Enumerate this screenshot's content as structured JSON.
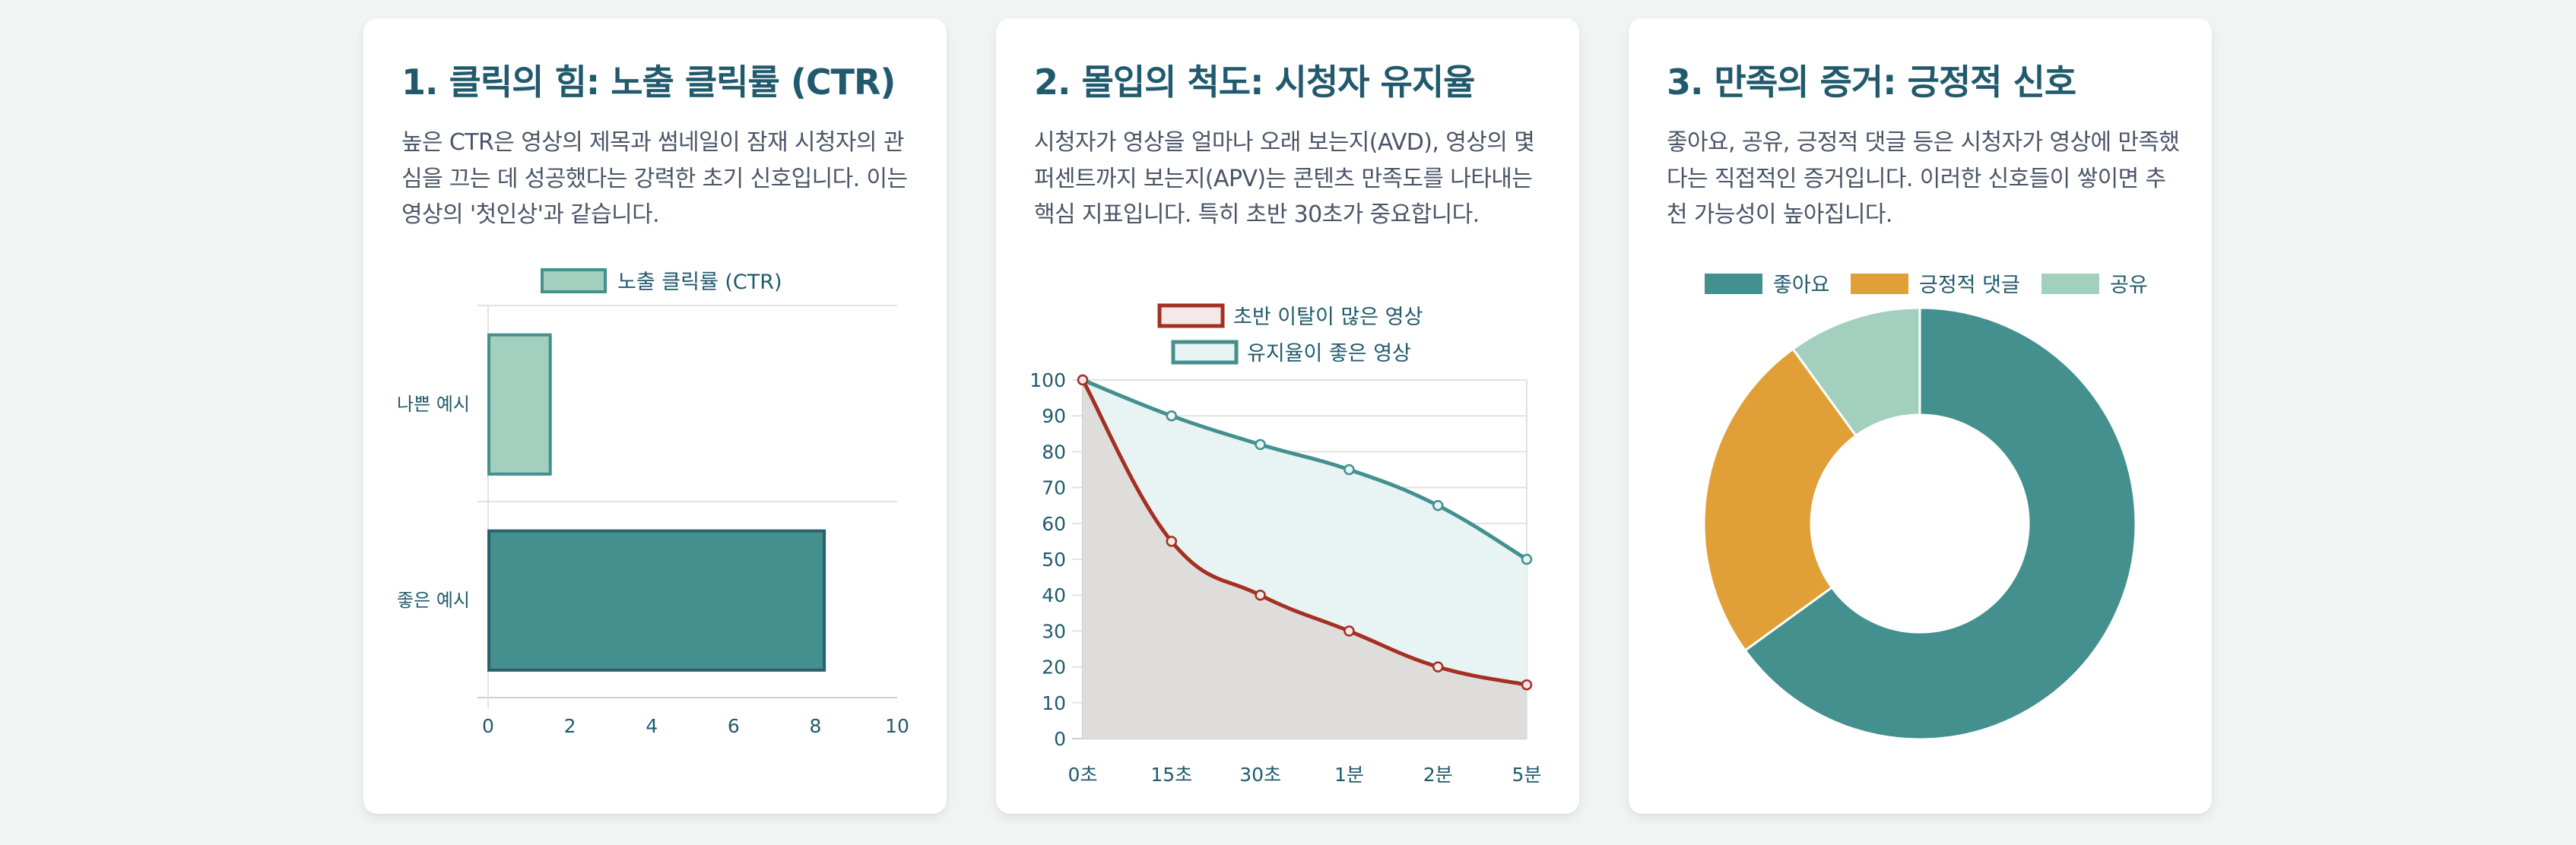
{
  "cards": [
    {
      "title": "1. 클릭의 힘: 노출 클릭률 (CTR)",
      "description": "높은 CTR은 영상의 제목과 썸네일이 잠재 시청자의 관심을 끄는 데 성공했다는 강력한 초기 신호입니다. 이는 영상의 '첫인상'과 같습니다."
    },
    {
      "title": "2. 몰입의 척도: 시청자 유지율",
      "description": "시청자가 영상을 얼마나 오래 보는지(AVD), 영상의 몇 퍼센트까지 보는지(APV)는 콘텐츠 만족도를 나타내는 핵심 지표입니다. 특히 초반 30초가 중요합니다."
    },
    {
      "title": "3. 만족의 증거: 긍정적 신호",
      "description": "좋아요, 공유, 긍정적 댓글 등은 시청자가 영상에 만족했다는 직접적인 증거입니다. 이러한 신호들이 쌓이면 추천 가능성이 높아집니다."
    }
  ],
  "colors": {
    "background": "#f0f5f3",
    "title": "#215a6d",
    "text": "#4a5568",
    "teal": "#43908f",
    "teal_dark": "#2c5f6e",
    "mint": "#a3d0be",
    "orange": "#e1a037",
    "red": "#a33022",
    "red_fill": "#f5e8e8",
    "teal_fill": "#e8f3f3",
    "grid": "#e2e2e2"
  },
  "chart_data": [
    {
      "type": "bar",
      "orientation": "horizontal",
      "title": "",
      "legend": [
        "노출 클릭률 (CTR)"
      ],
      "legend_position": "top",
      "categories": [
        "나쁜 예시",
        "좋은 예시"
      ],
      "values": [
        1.5,
        8.2
      ],
      "xlabel": "",
      "ylabel": "",
      "xlim": [
        0,
        10
      ],
      "xticks": [
        "0",
        "2",
        "4",
        "6",
        "8",
        "10"
      ],
      "grid": true
    },
    {
      "type": "area",
      "title": "",
      "legend_position": "top",
      "categories": [
        "0초",
        "15초",
        "30초",
        "1분",
        "2분",
        "5분"
      ],
      "series": [
        {
          "name": "초반 이탈이 많은 영상",
          "values": [
            100,
            55,
            40,
            30,
            20,
            15
          ]
        },
        {
          "name": "유지율이 좋은 영상",
          "values": [
            100,
            90,
            82,
            75,
            65,
            50
          ]
        }
      ],
      "ylim": [
        0,
        100
      ],
      "yticks": [
        "0",
        "10",
        "20",
        "30",
        "40",
        "50",
        "60",
        "70",
        "80",
        "90",
        "100"
      ],
      "xlabel": "",
      "ylabel": "",
      "grid": true
    },
    {
      "type": "pie",
      "variant": "doughnut",
      "title": "",
      "legend_position": "top",
      "categories": [
        "좋아요",
        "긍정적 댓글",
        "공유"
      ],
      "values": [
        65,
        25,
        10
      ]
    }
  ]
}
